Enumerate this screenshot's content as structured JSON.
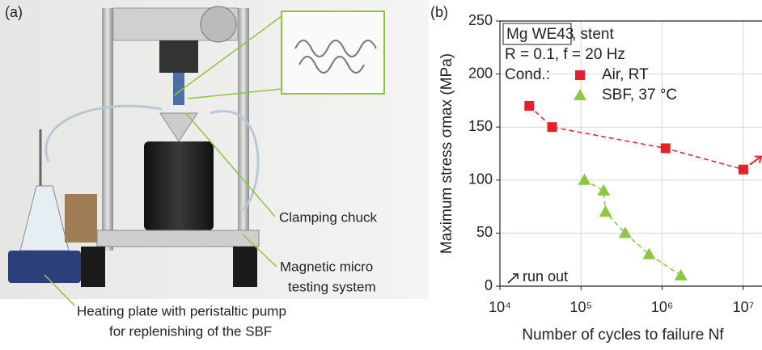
{
  "panel_a": {
    "label": "(a)",
    "callouts": [
      "Clamping chuck",
      "Magnetic micro",
      "testing system",
      "Heating plate with peristaltic pump",
      "for replenishing of the SBF"
    ]
  },
  "chart_data": {
    "type": "scatter",
    "panel_label": "(b)",
    "annotations": [
      "Mg WE43",
      ", stent",
      "R = 0.1, f = 20 Hz",
      "Cond.:",
      "run out"
    ],
    "x_label": "Number of cycles to failure Nf",
    "y_label": "Maximum stress σmax (MPa)",
    "xscale": "log",
    "xlim": [
      10000,
      17000000
    ],
    "ylim": [
      0,
      250
    ],
    "xticks": [
      {
        "value": 10000,
        "label": "10⁴"
      },
      {
        "value": 100000,
        "label": "10⁵"
      },
      {
        "value": 1000000,
        "label": "10⁶"
      },
      {
        "value": 10000000,
        "label": "10⁷"
      }
    ],
    "yticks": [
      0,
      50,
      100,
      150,
      200,
      250
    ],
    "grid": true,
    "series": [
      {
        "name": "Air, RT",
        "color": "#e8202a",
        "marker": "square",
        "x": [
          23000,
          44000,
          1100000,
          10000000
        ],
        "values": [
          170,
          150,
          130,
          110
        ]
      },
      {
        "name": "SBF, 37 °C",
        "color": "#8dc63f",
        "marker": "triangle",
        "x": [
          110000,
          190000,
          200000,
          350000,
          690000,
          1700000
        ],
        "values": [
          100,
          90,
          70,
          50,
          30,
          10
        ]
      }
    ]
  }
}
